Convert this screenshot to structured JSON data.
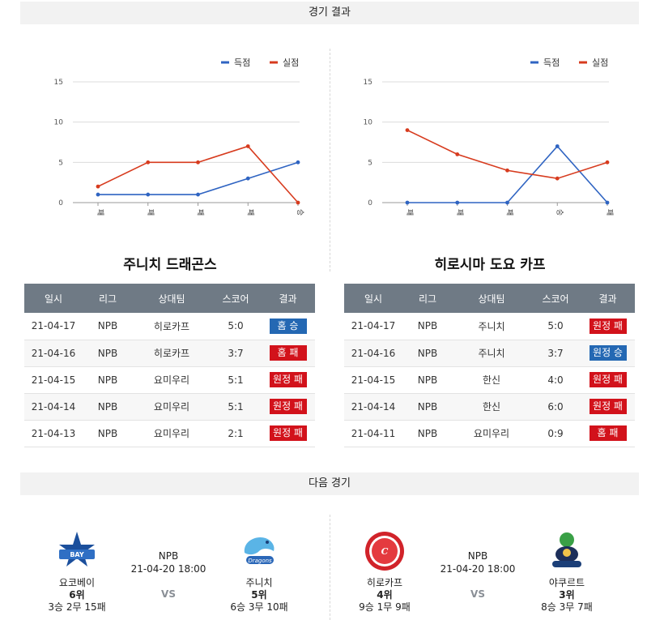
{
  "headers": {
    "result": "경기 결과",
    "next": "다음 경기"
  },
  "colors": {
    "scored": "#2f64c2",
    "conceded": "#d73b1e",
    "win": "#2468b3",
    "lose": "#d2121b",
    "header_bg": "#6f7a85"
  },
  "chart_data": [
    {
      "type": "line",
      "categories": [
        "패",
        "패",
        "패",
        "패",
        "승"
      ],
      "series": [
        {
          "name": "득점",
          "values": [
            1,
            1,
            1,
            3,
            5
          ]
        },
        {
          "name": "실점",
          "values": [
            2,
            5,
            5,
            7,
            0
          ]
        }
      ],
      "yticks": [
        "0",
        "5",
        "10",
        "15"
      ],
      "ylim": [
        0,
        15
      ],
      "grid": true,
      "legend": "top-right"
    },
    {
      "type": "line",
      "categories": [
        "패",
        "패",
        "패",
        "승",
        "패"
      ],
      "series": [
        {
          "name": "득점",
          "values": [
            0,
            0,
            0,
            7,
            0
          ]
        },
        {
          "name": "실점",
          "values": [
            9,
            6,
            4,
            3,
            5
          ]
        }
      ],
      "yticks": [
        "0",
        "5",
        "10",
        "15"
      ],
      "ylim": [
        0,
        15
      ],
      "grid": true,
      "legend": "top-right"
    }
  ],
  "table_columns": [
    "일시",
    "리그",
    "상대팀",
    "스코어",
    "결과"
  ],
  "teams": [
    {
      "title": "주니치 드래곤스",
      "rows": [
        {
          "date": "21-04-17",
          "league": "NPB",
          "opponent": "히로카프",
          "score": "5:0",
          "result": "홈 승",
          "win": true
        },
        {
          "date": "21-04-16",
          "league": "NPB",
          "opponent": "히로카프",
          "score": "3:7",
          "result": "홈 패",
          "win": false
        },
        {
          "date": "21-04-15",
          "league": "NPB",
          "opponent": "요미우리",
          "score": "5:1",
          "result": "원정 패",
          "win": false
        },
        {
          "date": "21-04-14",
          "league": "NPB",
          "opponent": "요미우리",
          "score": "5:1",
          "result": "원정 패",
          "win": false
        },
        {
          "date": "21-04-13",
          "league": "NPB",
          "opponent": "요미우리",
          "score": "2:1",
          "result": "원정 패",
          "win": false
        }
      ]
    },
    {
      "title": "히로시마 도요 카프",
      "rows": [
        {
          "date": "21-04-17",
          "league": "NPB",
          "opponent": "주니치",
          "score": "5:0",
          "result": "원정 패",
          "win": false
        },
        {
          "date": "21-04-16",
          "league": "NPB",
          "opponent": "주니치",
          "score": "3:7",
          "result": "원정 승",
          "win": true
        },
        {
          "date": "21-04-15",
          "league": "NPB",
          "opponent": "한신",
          "score": "4:0",
          "result": "원정 패",
          "win": false
        },
        {
          "date": "21-04-14",
          "league": "NPB",
          "opponent": "한신",
          "score": "6:0",
          "result": "원정 패",
          "win": false
        },
        {
          "date": "21-04-11",
          "league": "NPB",
          "opponent": "요미우리",
          "score": "0:9",
          "result": "홈 패",
          "win": false
        }
      ]
    }
  ],
  "next_matches": [
    {
      "league": "NPB",
      "time": "21-04-20 18:00",
      "vs": "VS",
      "home": {
        "name": "요코베이",
        "rank": "6위",
        "record": "3승 2무 15패",
        "logo_icon": "baystars-logo-icon"
      },
      "away": {
        "name": "주니치",
        "rank": "5위",
        "record": "6승 3무 10패",
        "logo_icon": "dragons-logo-icon"
      }
    },
    {
      "league": "NPB",
      "time": "21-04-20 18:00",
      "vs": "VS",
      "home": {
        "name": "히로카프",
        "rank": "4위",
        "record": "9승 1무 9패",
        "logo_icon": "carp-logo-icon"
      },
      "away": {
        "name": "야쿠르트",
        "rank": "3위",
        "record": "8승 3무 7패",
        "logo_icon": "swallows-logo-icon"
      }
    }
  ]
}
